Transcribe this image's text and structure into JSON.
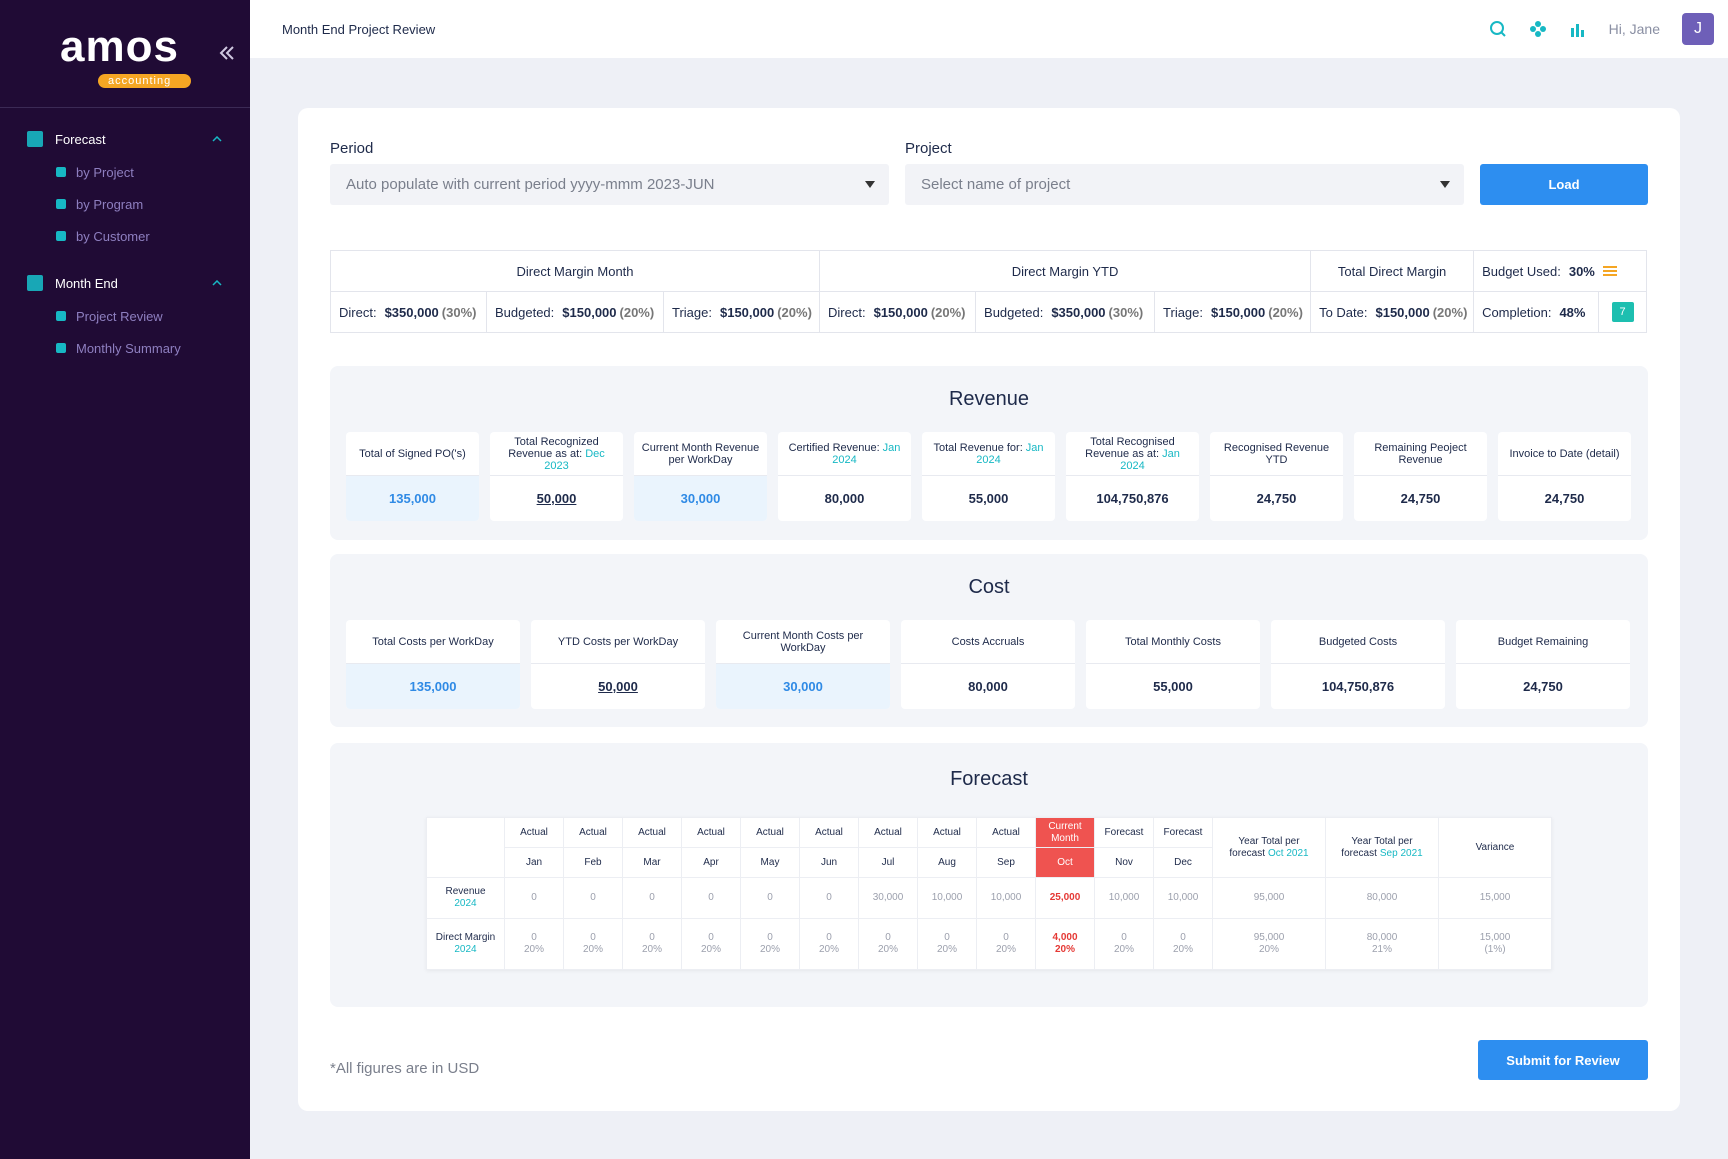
{
  "sidebar": {
    "logo": "amos",
    "logo_sub": "accounting",
    "menu": [
      {
        "label": "Forecast",
        "items": [
          "by Project",
          "by Program",
          "by Customer"
        ]
      },
      {
        "label": "Month End",
        "items": [
          "Project Review",
          "Monthly Summary"
        ]
      }
    ]
  },
  "header": {
    "title": "Month End Project Review",
    "greeting": "Hi, Jane",
    "avatar": "J"
  },
  "filters": {
    "period_label": "Period",
    "period_placeholder": "Auto populate with current period yyyy-mmm 2023-JUN",
    "project_label": "Project",
    "project_placeholder": "Select name of project",
    "load": "Load"
  },
  "margins": {
    "groups": [
      {
        "title": "Direct Margin Month",
        "cells": [
          {
            "label": "Direct:",
            "amount": "$350,000",
            "pct": "(30%)"
          },
          {
            "label": "Budgeted:",
            "amount": "$150,000",
            "pct": "(20%)"
          },
          {
            "label": "Triage:",
            "amount": "$150,000",
            "pct": "(20%)"
          }
        ]
      },
      {
        "title": "Direct Margin YTD",
        "cells": [
          {
            "label": "Direct:",
            "amount": "$150,000",
            "pct": "(20%)"
          },
          {
            "label": "Budgeted:",
            "amount": "$350,000",
            "pct": "(30%)"
          },
          {
            "label": "Triage:",
            "amount": "$150,000",
            "pct": "(20%)"
          }
        ]
      },
      {
        "title": "Total Direct Margin",
        "cells": [
          {
            "label": "To Date:",
            "amount": "$150,000",
            "pct": "(20%)"
          }
        ]
      }
    ],
    "budget_used": {
      "label": "Budget Used:",
      "value": "30%"
    },
    "completion": {
      "label": "Completion:",
      "value": "48%",
      "badge": "7"
    }
  },
  "revenue": {
    "title": "Revenue",
    "cards": [
      {
        "label": "Total of Signed PO('s)",
        "value": "135,000",
        "style": "accent"
      },
      {
        "label": "Total Recognized Revenue as at:",
        "highlight": "Dec 2023",
        "value": "50,000",
        "style": "link"
      },
      {
        "label": "Current Month Revenue per WorkDay",
        "value": "30,000",
        "style": "accent"
      },
      {
        "label": "Certified Revenue:",
        "highlight": "Jan 2024",
        "value": "80,000"
      },
      {
        "label": "Total Revenue for:",
        "highlight": "Jan 2024",
        "value": "55,000"
      },
      {
        "label": "Total Recognised Revenue as at:",
        "highlight": "Jan 2024",
        "value": "104,750,876"
      },
      {
        "label": "Recognised Revenue YTD",
        "value": "24,750"
      },
      {
        "label": "Remaining Peoject Revenue",
        "value": "24,750"
      },
      {
        "label": "Invoice to Date (detail)",
        "value": "24,750"
      }
    ]
  },
  "cost": {
    "title": "Cost",
    "cards": [
      {
        "label": "Total Costs per WorkDay",
        "value": "135,000",
        "style": "accent"
      },
      {
        "label": "YTD Costs per WorkDay",
        "value": "50,000",
        "style": "link"
      },
      {
        "label": "Current Month Costs per WorkDay",
        "value": "30,000",
        "style": "accent"
      },
      {
        "label": "Costs Accruals",
        "value": "80,000"
      },
      {
        "label": "Total Monthly Costs",
        "value": "55,000"
      },
      {
        "label": "Budgeted Costs",
        "value": "104,750,876"
      },
      {
        "label": "Budget Remaining",
        "value": "24,750"
      }
    ]
  },
  "forecast": {
    "title": "Forecast",
    "columns": [
      {
        "kind": "Actual",
        "month": "Jan"
      },
      {
        "kind": "Actual",
        "month": "Feb"
      },
      {
        "kind": "Actual",
        "month": "Mar"
      },
      {
        "kind": "Actual",
        "month": "Apr"
      },
      {
        "kind": "Actual",
        "month": "May"
      },
      {
        "kind": "Actual",
        "month": "Jun"
      },
      {
        "kind": "Actual",
        "month": "Jul"
      },
      {
        "kind": "Actual",
        "month": "Aug"
      },
      {
        "kind": "Actual",
        "month": "Sep"
      },
      {
        "kind": "Current Month",
        "month": "Oct",
        "highlight": true
      },
      {
        "kind": "Forecast",
        "month": "Nov"
      },
      {
        "kind": "Forecast",
        "month": "Dec"
      }
    ],
    "totals": [
      {
        "text": "Year Total per forecast",
        "period": "Oct 2021"
      },
      {
        "text": "Year Total per forecast",
        "period": "Sep 2021"
      },
      {
        "text": "Variance"
      }
    ],
    "rows": [
      {
        "label": "Revenue",
        "year": "2024",
        "values": [
          "0",
          "0",
          "0",
          "0",
          "0",
          "0",
          "30,000",
          "10,000",
          "10,000",
          "25,000",
          "10,000",
          "10,000"
        ],
        "totals": [
          "95,000",
          "80,000",
          "15,000"
        ]
      },
      {
        "label": "Direct Margin",
        "year": "2024",
        "values": [
          {
            "amount": "0",
            "pct": "20%"
          },
          {
            "amount": "0",
            "pct": "20%"
          },
          {
            "amount": "0",
            "pct": "20%"
          },
          {
            "amount": "0",
            "pct": "20%"
          },
          {
            "amount": "0",
            "pct": "20%"
          },
          {
            "amount": "0",
            "pct": "20%"
          },
          {
            "amount": "0",
            "pct": "20%"
          },
          {
            "amount": "0",
            "pct": "20%"
          },
          {
            "amount": "0",
            "pct": "20%"
          },
          {
            "amount": "4,000",
            "pct": "20%"
          },
          {
            "amount": "0",
            "pct": "20%"
          },
          {
            "amount": "0",
            "pct": "20%"
          }
        ],
        "totals": [
          {
            "amount": "95,000",
            "pct": "20%"
          },
          {
            "amount": "80,000",
            "pct": "21%"
          },
          {
            "amount": "15,000",
            "pct": "(1%)"
          }
        ]
      }
    ]
  },
  "footer": {
    "note": "*All figures are in USD",
    "submit": "Submit for Review"
  }
}
